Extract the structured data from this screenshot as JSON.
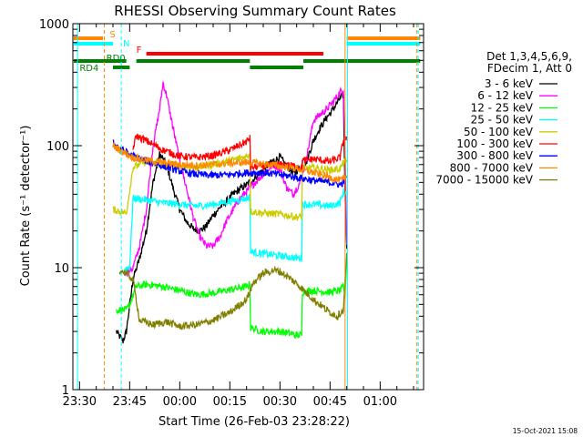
{
  "chart_data": {
    "type": "line",
    "title": "RHESSI Observing Summary Count Rates",
    "xlabel": "Start Time (26-Feb-03 23:28:22)",
    "ylabel": "Count Rate (s⁻¹ detector⁻¹)",
    "timestamp": "15-Oct-2021 15:08",
    "yscale": "log",
    "ylim": [
      1,
      1000
    ],
    "yticks": [
      {
        "v": 1,
        "label": "1"
      },
      {
        "v": 10,
        "label": "10"
      },
      {
        "v": 100,
        "label": "100"
      },
      {
        "v": 1000,
        "label": "1000"
      }
    ],
    "xlim_min": [
      -32,
      73
    ],
    "xticks": [
      {
        "m": -30,
        "label": "23:30"
      },
      {
        "m": -15,
        "label": "23:45"
      },
      {
        "m": 0,
        "label": "00:00"
      },
      {
        "m": 15,
        "label": "00:15"
      },
      {
        "m": 30,
        "label": "00:30"
      },
      {
        "m": 45,
        "label": "00:45"
      },
      {
        "m": 60,
        "label": "01:00"
      }
    ],
    "legend_header": [
      "Det 1,3,4,5,6,9,",
      "FDecim 1, Att 0"
    ],
    "series": [
      {
        "name": "3 - 6 keV",
        "color": "#000000",
        "points": [
          [
            -19,
            3.0
          ],
          [
            -17,
            2.5
          ],
          [
            -16,
            3.0
          ],
          [
            -14,
            8
          ],
          [
            -12,
            12
          ],
          [
            -10,
            20
          ],
          [
            -8,
            50
          ],
          [
            -6,
            85
          ],
          [
            -4,
            70
          ],
          [
            -2,
            45
          ],
          [
            0,
            30
          ],
          [
            2,
            24
          ],
          [
            4,
            21
          ],
          [
            6,
            20
          ],
          [
            8,
            22
          ],
          [
            10,
            27
          ],
          [
            12,
            31
          ],
          [
            14,
            35
          ],
          [
            16,
            40
          ],
          [
            18,
            44
          ],
          [
            20,
            48
          ],
          [
            22,
            53
          ],
          [
            24,
            60
          ],
          [
            26,
            68
          ],
          [
            28,
            75
          ],
          [
            30,
            80
          ],
          [
            32,
            68
          ],
          [
            34,
            60
          ],
          [
            36,
            65
          ],
          [
            38,
            75
          ],
          [
            40,
            110
          ],
          [
            42,
            140
          ],
          [
            44,
            170
          ],
          [
            46,
            200
          ],
          [
            48,
            245
          ],
          [
            49,
            260
          ],
          [
            49.5,
            40
          ],
          [
            50,
            15
          ]
        ]
      },
      {
        "name": "6 - 12 keV",
        "color": "#ff00ff",
        "points": [
          [
            -16,
            9
          ],
          [
            -14,
            10
          ],
          [
            -12,
            15
          ],
          [
            -10,
            30
          ],
          [
            -8,
            100
          ],
          [
            -6,
            200
          ],
          [
            -5,
            330
          ],
          [
            -4,
            260
          ],
          [
            -2,
            140
          ],
          [
            0,
            75
          ],
          [
            2,
            45
          ],
          [
            4,
            26
          ],
          [
            6,
            18
          ],
          [
            8,
            15
          ],
          [
            10,
            15
          ],
          [
            12,
            18
          ],
          [
            14,
            24
          ],
          [
            16,
            30
          ],
          [
            18,
            37
          ],
          [
            20,
            42
          ],
          [
            22,
            48
          ],
          [
            24,
            55
          ],
          [
            26,
            62
          ],
          [
            28,
            70
          ],
          [
            30,
            65
          ],
          [
            32,
            45
          ],
          [
            34,
            40
          ],
          [
            36,
            50
          ],
          [
            38,
            80
          ],
          [
            40,
            160
          ],
          [
            42,
            180
          ],
          [
            44,
            200
          ],
          [
            46,
            230
          ],
          [
            48,
            275
          ],
          [
            49,
            290
          ],
          [
            49.5,
            90
          ],
          [
            50,
            15
          ]
        ]
      },
      {
        "name": "12 - 25 keV",
        "color": "#00ff00",
        "points": [
          [
            -19,
            4.5
          ],
          [
            -16,
            4.5
          ],
          [
            -15,
            5
          ],
          [
            -13,
            7
          ],
          [
            -10,
            7.3
          ],
          [
            -5,
            7.0
          ],
          [
            0,
            6.5
          ],
          [
            5,
            6.0
          ],
          [
            10,
            6.2
          ],
          [
            15,
            6.6
          ],
          [
            20,
            7.0
          ],
          [
            21,
            7.3
          ],
          [
            21.2,
            3.2
          ],
          [
            25,
            3.0
          ],
          [
            30,
            3.0
          ],
          [
            35,
            2.8
          ],
          [
            36.5,
            2.8
          ],
          [
            36.7,
            6.3
          ],
          [
            40,
            6.5
          ],
          [
            45,
            6.3
          ],
          [
            48,
            6.5
          ],
          [
            49,
            7
          ],
          [
            49.5,
            6
          ],
          [
            50,
            12
          ]
        ]
      },
      {
        "name": "25 - 50 keV",
        "color": "#00ffff",
        "points": [
          [
            -17,
            9
          ],
          [
            -16,
            10
          ],
          [
            -15,
            10
          ],
          [
            -14,
            37
          ],
          [
            -10,
            36
          ],
          [
            -5,
            34
          ],
          [
            0,
            33
          ],
          [
            5,
            32
          ],
          [
            10,
            33
          ],
          [
            15,
            35
          ],
          [
            20,
            37
          ],
          [
            21,
            38
          ],
          [
            21.2,
            13.5
          ],
          [
            25,
            13
          ],
          [
            30,
            12.5
          ],
          [
            35,
            12
          ],
          [
            36.5,
            12
          ],
          [
            36.7,
            33
          ],
          [
            40,
            33
          ],
          [
            45,
            32
          ],
          [
            48,
            34
          ],
          [
            49,
            42
          ],
          [
            50,
            40
          ]
        ]
      },
      {
        "name": "50 - 100 keV",
        "color": "#cccc00",
        "points": [
          [
            -20,
            30
          ],
          [
            -18,
            29
          ],
          [
            -16,
            28
          ],
          [
            -14,
            66
          ],
          [
            -10,
            75
          ],
          [
            -5,
            72
          ],
          [
            0,
            68
          ],
          [
            5,
            66
          ],
          [
            10,
            70
          ],
          [
            15,
            75
          ],
          [
            20,
            82
          ],
          [
            21,
            86
          ],
          [
            21.2,
            29
          ],
          [
            25,
            28
          ],
          [
            30,
            27.5
          ],
          [
            35,
            26
          ],
          [
            36.5,
            26
          ],
          [
            36.7,
            65
          ],
          [
            40,
            66
          ],
          [
            45,
            63
          ],
          [
            48,
            65
          ],
          [
            49,
            72
          ],
          [
            50,
            75
          ]
        ]
      },
      {
        "name": "100 - 300 keV",
        "color": "#ff0000",
        "points": [
          [
            -14,
            95
          ],
          [
            -13,
            120
          ],
          [
            -10,
            110
          ],
          [
            -5,
            92
          ],
          [
            0,
            82
          ],
          [
            5,
            80
          ],
          [
            10,
            83
          ],
          [
            15,
            92
          ],
          [
            20,
            108
          ],
          [
            21,
            115
          ],
          [
            21.2,
            66
          ],
          [
            25,
            68
          ],
          [
            30,
            70
          ],
          [
            35,
            68
          ],
          [
            36.5,
            66
          ],
          [
            36.7,
            75
          ],
          [
            40,
            78
          ],
          [
            45,
            74
          ],
          [
            48,
            80
          ],
          [
            49,
            110
          ],
          [
            50,
            115
          ]
        ]
      },
      {
        "name": "300 - 800 keV",
        "color": "#0000ff",
        "points": [
          [
            -20,
            105
          ],
          [
            -18,
            95
          ],
          [
            -16,
            88
          ],
          [
            -14,
            82
          ],
          [
            -10,
            75
          ],
          [
            -5,
            68
          ],
          [
            0,
            62
          ],
          [
            5,
            58
          ],
          [
            10,
            57
          ],
          [
            15,
            58
          ],
          [
            20,
            60
          ],
          [
            25,
            60
          ],
          [
            30,
            58
          ],
          [
            35,
            55
          ],
          [
            40,
            52
          ],
          [
            45,
            50
          ],
          [
            48,
            48
          ],
          [
            49,
            50
          ],
          [
            50,
            55
          ]
        ]
      },
      {
        "name": "800 - 7000 keV",
        "color": "#ff8800",
        "points": [
          [
            -20,
            100
          ],
          [
            -18,
            92
          ],
          [
            -16,
            86
          ],
          [
            -14,
            80
          ],
          [
            -10,
            76
          ],
          [
            -5,
            72
          ],
          [
            0,
            70
          ],
          [
            5,
            69
          ],
          [
            10,
            70
          ],
          [
            15,
            72
          ],
          [
            20,
            73
          ],
          [
            25,
            71
          ],
          [
            30,
            68
          ],
          [
            35,
            65
          ],
          [
            40,
            60
          ],
          [
            45,
            55
          ],
          [
            48,
            52
          ],
          [
            49,
            53
          ],
          [
            50,
            56
          ]
        ]
      },
      {
        "name": "7000 - 15000 keV",
        "color": "#808000",
        "points": [
          [
            -18,
            9.5
          ],
          [
            -16,
            9
          ],
          [
            -14,
            8
          ],
          [
            -12,
            3.7
          ],
          [
            -8,
            3.4
          ],
          [
            -4,
            3.6
          ],
          [
            0,
            3.3
          ],
          [
            5,
            3.4
          ],
          [
            10,
            3.7
          ],
          [
            15,
            4.3
          ],
          [
            20,
            5.5
          ],
          [
            22,
            7.5
          ],
          [
            25,
            9.0
          ],
          [
            28,
            9.5
          ],
          [
            30,
            9.3
          ],
          [
            33,
            8.2
          ],
          [
            36,
            7
          ],
          [
            40,
            5.5
          ],
          [
            44,
            4.5
          ],
          [
            47,
            4.0
          ],
          [
            49,
            4.5
          ],
          [
            50,
            13
          ]
        ]
      }
    ],
    "flag_bars": [
      {
        "label": "S",
        "color": "#ff8800",
        "ranges": [
          [
            -32,
            -23
          ],
          [
            50,
            72
          ]
        ],
        "y": 42
      },
      {
        "label": "N",
        "color": "#00ffff",
        "ranges": [
          [
            -32,
            -20
          ],
          [
            50,
            72
          ]
        ],
        "y": 48
      },
      {
        "label": "F",
        "color": "#ff0000",
        "ranges": [
          [
            -10,
            43
          ]
        ],
        "y": 59
      },
      {
        "label": "RD0",
        "color": "#008000",
        "ranges": [
          [
            -32,
            -16
          ],
          [
            -13,
            21
          ],
          [
            37,
            72
          ]
        ],
        "y": 67
      },
      {
        "label": "RD4",
        "color": "#008000",
        "ranges": [
          [
            -20,
            -15
          ],
          [
            21,
            37
          ]
        ],
        "y": 74
      }
    ],
    "vlines": [
      {
        "m": -30.6,
        "color": "#00ffff",
        "dash": false
      },
      {
        "m": -22.6,
        "color": "#ff8800",
        "dash": true
      },
      {
        "m": -17.5,
        "color": "#00ffff",
        "dash": true
      },
      {
        "m": 49.5,
        "color": "#ff8800",
        "dash": false
      },
      {
        "m": 50.2,
        "color": "#00ffff",
        "dash": false
      },
      {
        "m": 71.0,
        "color": "#ff8800",
        "dash": true
      },
      {
        "m": 71.4,
        "color": "#00ffff",
        "dash": true
      }
    ]
  }
}
